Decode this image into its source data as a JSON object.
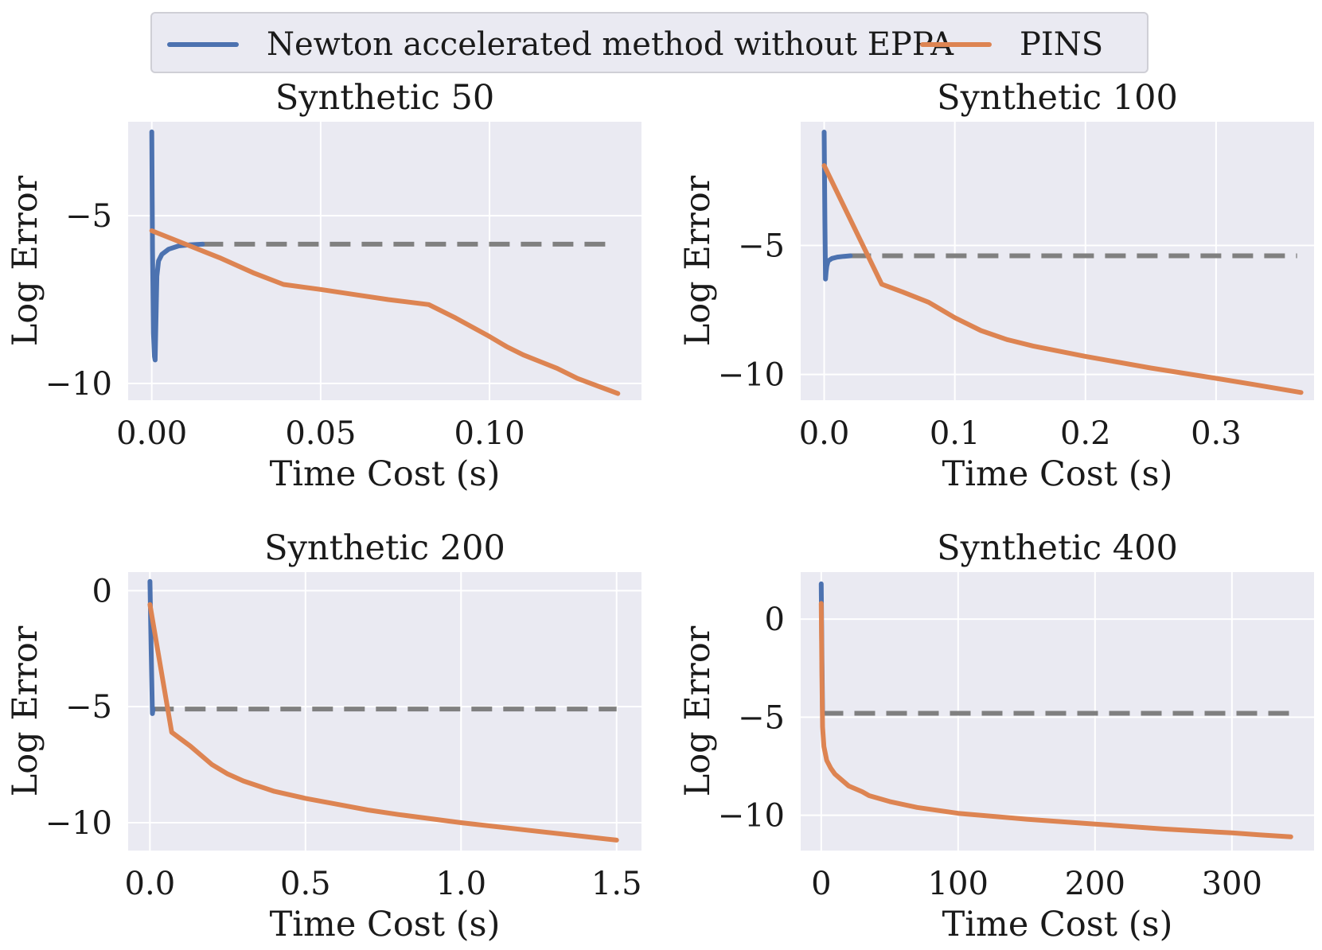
{
  "legend": {
    "entries": [
      {
        "label": "Newton accelerated method without EPPA",
        "color": "#4c72b0"
      },
      {
        "label": "PINS",
        "color": "#dd8452"
      }
    ]
  },
  "colors": {
    "background": "#eaeaf2",
    "grid": "#ffffff",
    "reference_line": "#808080"
  },
  "chart_data": [
    {
      "type": "line",
      "title": "Synthetic 50",
      "xlabel": "Time Cost (s)",
      "ylabel": "Log Error",
      "xlim": [
        -0.007,
        0.145
      ],
      "ylim": [
        -10.5,
        -2.2
      ],
      "xticks": [
        0.0,
        0.05,
        0.1
      ],
      "xtick_labels": [
        "0.00",
        "0.05",
        "0.10"
      ],
      "yticks": [
        -5,
        -10
      ],
      "ytick_labels": [
        "−5",
        "−10"
      ],
      "grid": true,
      "series": [
        {
          "name": "Newton accelerated method without EPPA",
          "color": "#4c72b0",
          "x": [
            0.0,
            0.0002,
            0.0005,
            0.0008,
            0.001,
            0.0015,
            0.002,
            0.003,
            0.005,
            0.008,
            0.011,
            0.015
          ],
          "y": [
            -2.5,
            -6.0,
            -8.5,
            -9.2,
            -9.3,
            -6.8,
            -6.35,
            -6.15,
            -6.0,
            -5.9,
            -5.87,
            -5.85
          ]
        },
        {
          "name": "PINS",
          "color": "#dd8452",
          "x": [
            0.0,
            0.01,
            0.02,
            0.03,
            0.039,
            0.05,
            0.06,
            0.07,
            0.082,
            0.09,
            0.1,
            0.105,
            0.11,
            0.115,
            0.12,
            0.126,
            0.13,
            0.138
          ],
          "y": [
            -5.45,
            -5.85,
            -6.25,
            -6.7,
            -7.05,
            -7.2,
            -7.35,
            -7.5,
            -7.65,
            -8.05,
            -8.6,
            -8.9,
            -9.15,
            -9.35,
            -9.55,
            -9.85,
            -10.0,
            -10.3
          ]
        },
        {
          "name": "",
          "color": "#808080",
          "dashed": true,
          "x": [
            0.015,
            0.136
          ],
          "y": [
            -5.85,
            -5.85
          ]
        }
      ]
    },
    {
      "type": "line",
      "title": "Synthetic 100",
      "xlabel": "Time Cost (s)",
      "ylabel": "Log Error",
      "xlim": [
        -0.018,
        0.375
      ],
      "ylim": [
        -11.0,
        -0.2
      ],
      "xticks": [
        0.0,
        0.1,
        0.2,
        0.3
      ],
      "xtick_labels": [
        "0.0",
        "0.1",
        "0.2",
        "0.3"
      ],
      "yticks": [
        -5,
        -10
      ],
      "ytick_labels": [
        "−5",
        "−10"
      ],
      "grid": true,
      "series": [
        {
          "name": "Newton accelerated method without EPPA",
          "color": "#4c72b0",
          "x": [
            0.0,
            0.0005,
            0.001,
            0.0015,
            0.002,
            0.003,
            0.006,
            0.01,
            0.015,
            0.02
          ],
          "y": [
            -0.6,
            -4.0,
            -6.3,
            -6.0,
            -5.8,
            -5.6,
            -5.5,
            -5.45,
            -5.42,
            -5.4
          ]
        },
        {
          "name": "PINS",
          "color": "#dd8452",
          "x": [
            0.0,
            0.044,
            0.06,
            0.08,
            0.1,
            0.12,
            0.14,
            0.16,
            0.2,
            0.25,
            0.3,
            0.33,
            0.365
          ],
          "y": [
            -1.9,
            -6.5,
            -6.8,
            -7.2,
            -7.8,
            -8.3,
            -8.65,
            -8.9,
            -9.3,
            -9.75,
            -10.15,
            -10.4,
            -10.7
          ]
        },
        {
          "name": "",
          "color": "#808080",
          "dashed": true,
          "x": [
            0.02,
            0.362
          ],
          "y": [
            -5.4,
            -5.4
          ]
        }
      ]
    },
    {
      "type": "line",
      "title": "Synthetic 200",
      "xlabel": "Time Cost (s)",
      "ylabel": "Log Error",
      "xlim": [
        -0.07,
        1.58
      ],
      "ylim": [
        -11.2,
        0.8
      ],
      "xticks": [
        0.0,
        0.5,
        1.0,
        1.5
      ],
      "xtick_labels": [
        "0.0",
        "0.5",
        "1.0",
        "1.5"
      ],
      "yticks": [
        0,
        -5,
        -10
      ],
      "ytick_labels": [
        "0",
        "−5",
        "−10"
      ],
      "grid": true,
      "series": [
        {
          "name": "Newton accelerated method without EPPA",
          "color": "#4c72b0",
          "x": [
            0.0,
            0.004,
            0.008,
            0.01
          ],
          "y": [
            0.4,
            -2.5,
            -5.3,
            -5.1
          ]
        },
        {
          "name": "PINS",
          "color": "#dd8452",
          "x": [
            0.0,
            0.07,
            0.13,
            0.2,
            0.25,
            0.3,
            0.4,
            0.5,
            0.6,
            0.7,
            0.8,
            1.0,
            1.2,
            1.4,
            1.5
          ],
          "y": [
            -0.6,
            -6.1,
            -6.7,
            -7.5,
            -7.9,
            -8.2,
            -8.65,
            -8.95,
            -9.2,
            -9.45,
            -9.65,
            -10.0,
            -10.3,
            -10.6,
            -10.75
          ]
        },
        {
          "name": "",
          "color": "#808080",
          "dashed": true,
          "x": [
            0.01,
            1.5
          ],
          "y": [
            -5.1,
            -5.1
          ]
        }
      ]
    },
    {
      "type": "line",
      "title": "Synthetic 400",
      "xlabel": "Time Cost (s)",
      "ylabel": "Log Error",
      "xlim": [
        -15,
        360
      ],
      "ylim": [
        -11.8,
        2.4
      ],
      "xticks": [
        0,
        100,
        200,
        300
      ],
      "xtick_labels": [
        "0",
        "100",
        "200",
        "300"
      ],
      "yticks": [
        0,
        -5,
        -10
      ],
      "ytick_labels": [
        "0",
        "−5",
        "−10"
      ],
      "grid": true,
      "series": [
        {
          "name": "Newton accelerated method without EPPA",
          "color": "#4c72b0",
          "x": [
            0.0,
            0.5,
            1.0
          ],
          "y": [
            1.8,
            -2.0,
            -4.8
          ]
        },
        {
          "name": "PINS",
          "color": "#dd8452",
          "x": [
            0.0,
            0.5,
            1.0,
            2.0,
            4.0,
            7.0,
            10.0,
            15.0,
            20.0,
            30.0,
            35.0,
            50.0,
            70.0,
            100.0,
            150.0,
            200.0,
            250.0,
            300.0,
            320.0,
            343.0
          ],
          "y": [
            0.8,
            -3.0,
            -5.5,
            -6.5,
            -7.2,
            -7.6,
            -7.9,
            -8.2,
            -8.5,
            -8.8,
            -9.0,
            -9.3,
            -9.6,
            -9.9,
            -10.2,
            -10.45,
            -10.7,
            -10.9,
            -11.0,
            -11.1
          ]
        },
        {
          "name": "",
          "color": "#808080",
          "dashed": true,
          "x": [
            1.0,
            343.0
          ],
          "y": [
            -4.8,
            -4.8
          ]
        }
      ]
    }
  ]
}
